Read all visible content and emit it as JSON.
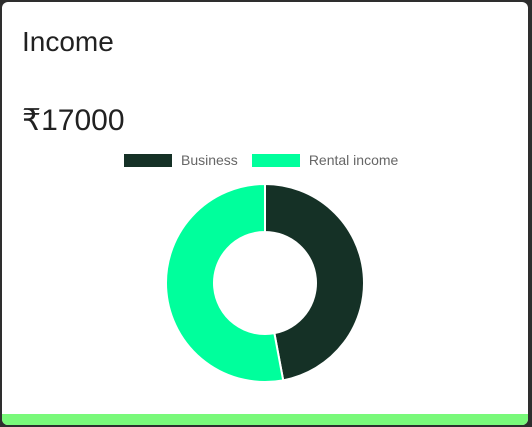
{
  "card": {
    "title": "Income",
    "amount": "₹17000"
  },
  "colors": {
    "business": "#153126",
    "rental_income": "#00ff9c",
    "footer_bar": "#79f97a"
  },
  "chart_data": {
    "type": "doughnut",
    "categories": [
      "Business",
      "Rental income"
    ],
    "values": [
      8000,
      9000
    ],
    "legend_position": "top"
  }
}
